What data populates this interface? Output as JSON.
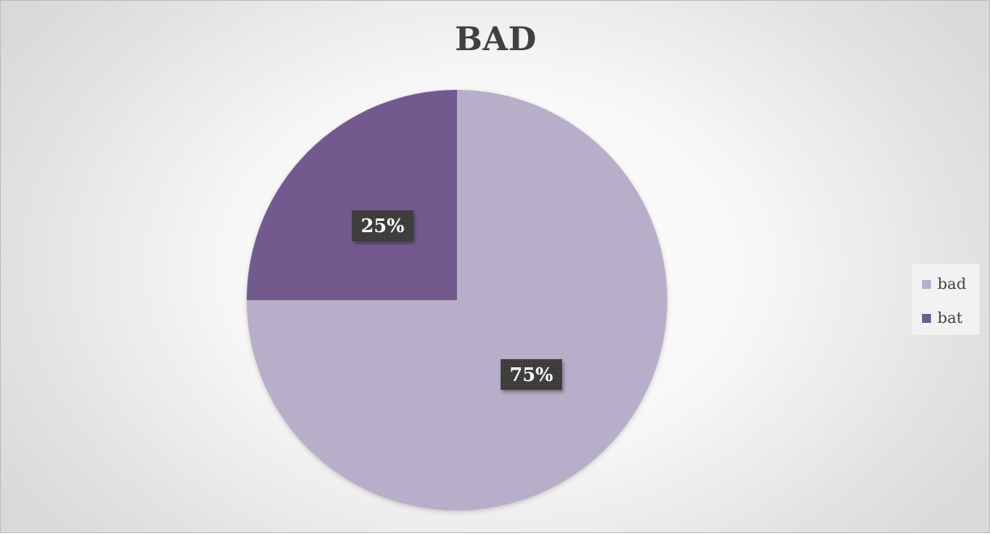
{
  "chart_data": {
    "type": "pie",
    "title": "BAD",
    "categories": [
      "bad",
      "bat"
    ],
    "values": [
      75,
      25
    ],
    "data_labels": [
      "75%",
      "25%"
    ],
    "colors": [
      "#b8aec9",
      "#725a8f"
    ],
    "legend_placement": "right",
    "legend_entries": [
      "bad",
      "bat"
    ]
  }
}
